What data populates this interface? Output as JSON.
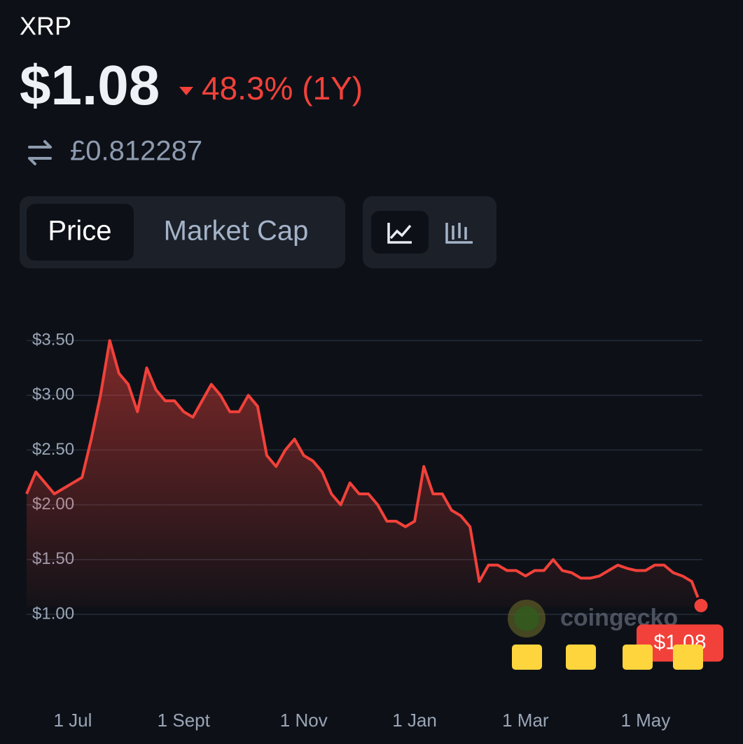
{
  "header": {
    "asset": "XRP",
    "price": "$1.08",
    "change": "48.3% (1Y)",
    "converted": "£0.812287"
  },
  "toggle": {
    "tabs": [
      "Price",
      "Market Cap"
    ]
  },
  "chart_data": {
    "type": "line",
    "color": "#f2413a",
    "grid": true,
    "watermark": "coingecko",
    "categories": [
      null,
      null,
      null,
      null,
      null,
      "1 Jul",
      null,
      null,
      null,
      null,
      null,
      null,
      null,
      null,
      null,
      null,
      null,
      "1 Sept",
      null,
      null,
      null,
      null,
      null,
      null,
      null,
      null,
      null,
      null,
      null,
      null,
      "1 Nov",
      null,
      null,
      null,
      null,
      null,
      null,
      null,
      null,
      null,
      null,
      null,
      "1 Jan",
      null,
      null,
      null,
      null,
      null,
      null,
      null,
      null,
      null,
      null,
      null,
      "1 Mar",
      null,
      null,
      null,
      null,
      null,
      null,
      null,
      null,
      null,
      null,
      null,
      null,
      "1 May",
      null,
      null,
      null,
      null,
      null,
      null
    ],
    "values": [
      2.1,
      2.3,
      2.2,
      2.1,
      2.15,
      2.2,
      2.25,
      2.6,
      3.0,
      3.5,
      3.2,
      3.1,
      2.85,
      3.25,
      3.05,
      2.95,
      2.95,
      2.85,
      2.8,
      2.95,
      3.1,
      3.0,
      2.85,
      2.85,
      3.0,
      2.9,
      2.45,
      2.35,
      2.5,
      2.6,
      2.45,
      2.4,
      2.3,
      2.1,
      2.0,
      2.2,
      2.1,
      2.1,
      2.0,
      1.85,
      1.85,
      1.8,
      1.85,
      2.35,
      2.1,
      2.1,
      1.95,
      1.9,
      1.8,
      1.3,
      1.45,
      1.45,
      1.4,
      1.4,
      1.35,
      1.4,
      1.4,
      1.5,
      1.4,
      1.38,
      1.33,
      1.33,
      1.35,
      1.4,
      1.45,
      1.42,
      1.4,
      1.4,
      1.45,
      1.45,
      1.38,
      1.35,
      1.3,
      1.08
    ],
    "value_labels": [
      null,
      null,
      null,
      null,
      null,
      null,
      null,
      null,
      null,
      null,
      null,
      null,
      null,
      null,
      null,
      null,
      null,
      null,
      null,
      null,
      null,
      null,
      null,
      null,
      null,
      null,
      null,
      null,
      null,
      null,
      null,
      null,
      null,
      null,
      null,
      null,
      null,
      null,
      null,
      null,
      null,
      null,
      null,
      null,
      null,
      null,
      null,
      null,
      null,
      null,
      null,
      null,
      null,
      null,
      null,
      null,
      null,
      null,
      null,
      null,
      null,
      null,
      null,
      null,
      null,
      null,
      null,
      null,
      null,
      null,
      null,
      null,
      null,
      "$1.08"
    ],
    "ylim": [
      0.75,
      3.75
    ],
    "yticks": [
      {
        "value": 1,
        "label": "$1.00"
      },
      {
        "value": 1.5,
        "label": "$1.50"
      },
      {
        "value": 2,
        "label": "$2.00"
      },
      {
        "value": 2.5,
        "label": "$2.50"
      },
      {
        "value": 3,
        "label": "$3.00"
      },
      {
        "value": 3.5,
        "label": "$3.50"
      }
    ]
  }
}
